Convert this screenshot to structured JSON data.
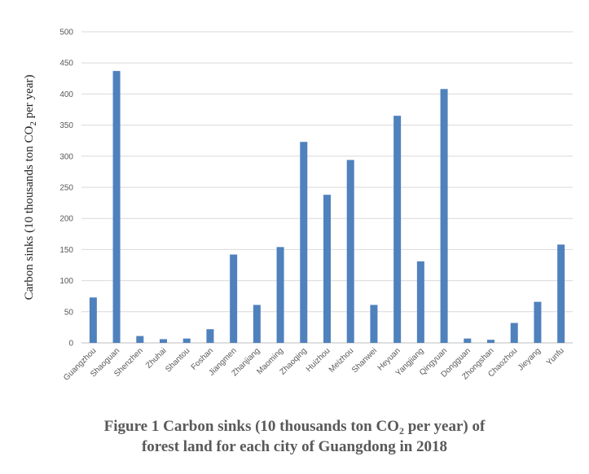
{
  "chart_data": {
    "type": "bar",
    "categories": [
      "Guangzhou",
      "Shaoguan",
      "Shenzhen",
      "Zhuhai",
      "Shantou",
      "Foshan",
      "Jiangmen",
      "Zhanjiang",
      "Maoming",
      "Zhaoqing",
      "Huizhou",
      "Meizhou",
      "Shanwei",
      "Heyuan",
      "Yangjiang",
      "Qingyuan",
      "Dongguan",
      "Zhongshan",
      "Chaozhou",
      "Jieyang",
      "Yunfu"
    ],
    "values": [
      73,
      437,
      11,
      6,
      7,
      22,
      142,
      61,
      154,
      323,
      238,
      294,
      61,
      365,
      131,
      408,
      7,
      5,
      32,
      66,
      158
    ],
    "ylabel": {
      "before": "Carbon sinks (10 thousands ton CO",
      "sub": "2",
      "after": " per year)"
    },
    "ylim": [
      0,
      500
    ],
    "yticks": [
      0,
      50,
      100,
      150,
      200,
      250,
      300,
      350,
      400,
      450,
      500
    ],
    "grid": true,
    "bar_color": "#4f81bd",
    "grid_color": "#d9d9d9"
  },
  "caption": {
    "line1_before": "Figure 1  Carbon sinks (10 thousands ton CO",
    "line1_sub": "2",
    "line1_after": " per year) of",
    "line2": "forest land for each city of Guangdong in 2018"
  }
}
